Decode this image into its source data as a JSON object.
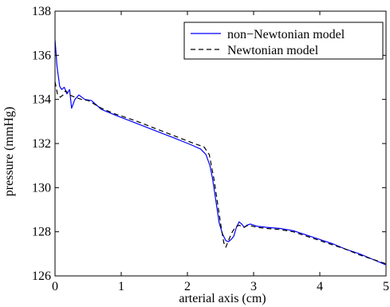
{
  "chart_data": {
    "type": "line",
    "title": "",
    "xlabel": "arterial axis (cm)",
    "ylabel": "pressure (mmHg)",
    "xlim": [
      0,
      5
    ],
    "ylim": [
      126,
      138
    ],
    "x_ticks": [
      0,
      1,
      2,
      3,
      4,
      5
    ],
    "y_ticks": [
      126,
      128,
      130,
      132,
      134,
      136,
      138
    ],
    "grid": false,
    "legend": "top-right",
    "series": [
      {
        "name": "non−Newtonian model",
        "color": "#0000ff",
        "dash": "solid",
        "points": [
          [
            0.0,
            136.7
          ],
          [
            0.03,
            135.5
          ],
          [
            0.07,
            134.6
          ],
          [
            0.1,
            134.45
          ],
          [
            0.14,
            134.55
          ],
          [
            0.18,
            134.25
          ],
          [
            0.22,
            134.45
          ],
          [
            0.25,
            133.6
          ],
          [
            0.3,
            134.0
          ],
          [
            0.36,
            134.2
          ],
          [
            0.45,
            134.0
          ],
          [
            0.55,
            133.95
          ],
          [
            0.7,
            133.55
          ],
          [
            0.9,
            133.3
          ],
          [
            1.2,
            132.95
          ],
          [
            1.5,
            132.6
          ],
          [
            1.8,
            132.25
          ],
          [
            2.05,
            131.95
          ],
          [
            2.2,
            131.75
          ],
          [
            2.28,
            131.5
          ],
          [
            2.34,
            131.0
          ],
          [
            2.38,
            130.4
          ],
          [
            2.43,
            129.4
          ],
          [
            2.48,
            128.4
          ],
          [
            2.53,
            127.9
          ],
          [
            2.58,
            127.6
          ],
          [
            2.62,
            127.55
          ],
          [
            2.66,
            127.65
          ],
          [
            2.7,
            127.8
          ],
          [
            2.74,
            128.2
          ],
          [
            2.78,
            128.45
          ],
          [
            2.82,
            128.35
          ],
          [
            2.86,
            128.2
          ],
          [
            2.9,
            128.3
          ],
          [
            2.95,
            128.35
          ],
          [
            3.05,
            128.25
          ],
          [
            3.2,
            128.2
          ],
          [
            3.4,
            128.15
          ],
          [
            3.6,
            128.05
          ],
          [
            3.8,
            127.85
          ],
          [
            4.0,
            127.65
          ],
          [
            4.2,
            127.45
          ],
          [
            4.4,
            127.2
          ],
          [
            4.6,
            127.0
          ],
          [
            4.8,
            126.75
          ],
          [
            5.0,
            126.5
          ]
        ]
      },
      {
        "name": "Newtonian model",
        "color": "#000000",
        "dash": "dashed",
        "points": [
          [
            0.0,
            134.8
          ],
          [
            0.04,
            134.2
          ],
          [
            0.08,
            134.1
          ],
          [
            0.12,
            134.2
          ],
          [
            0.16,
            134.4
          ],
          [
            0.22,
            134.2
          ],
          [
            0.3,
            134.1
          ],
          [
            0.4,
            134.0
          ],
          [
            0.5,
            133.95
          ],
          [
            0.7,
            133.6
          ],
          [
            0.9,
            133.35
          ],
          [
            1.2,
            133.05
          ],
          [
            1.5,
            132.7
          ],
          [
            1.8,
            132.35
          ],
          [
            2.1,
            132.0
          ],
          [
            2.25,
            131.85
          ],
          [
            2.33,
            131.5
          ],
          [
            2.4,
            130.4
          ],
          [
            2.46,
            129.2
          ],
          [
            2.51,
            128.2
          ],
          [
            2.55,
            127.5
          ],
          [
            2.58,
            127.3
          ],
          [
            2.62,
            127.6
          ],
          [
            2.67,
            127.95
          ],
          [
            2.72,
            128.2
          ],
          [
            2.78,
            128.3
          ],
          [
            2.85,
            128.2
          ],
          [
            2.92,
            128.3
          ],
          [
            3.05,
            128.2
          ],
          [
            3.2,
            128.15
          ],
          [
            3.4,
            128.1
          ],
          [
            3.6,
            128.0
          ],
          [
            3.8,
            127.8
          ],
          [
            4.0,
            127.6
          ],
          [
            4.2,
            127.4
          ],
          [
            4.4,
            127.2
          ],
          [
            4.6,
            126.95
          ],
          [
            4.8,
            126.75
          ],
          [
            5.0,
            126.55
          ]
        ]
      }
    ]
  }
}
